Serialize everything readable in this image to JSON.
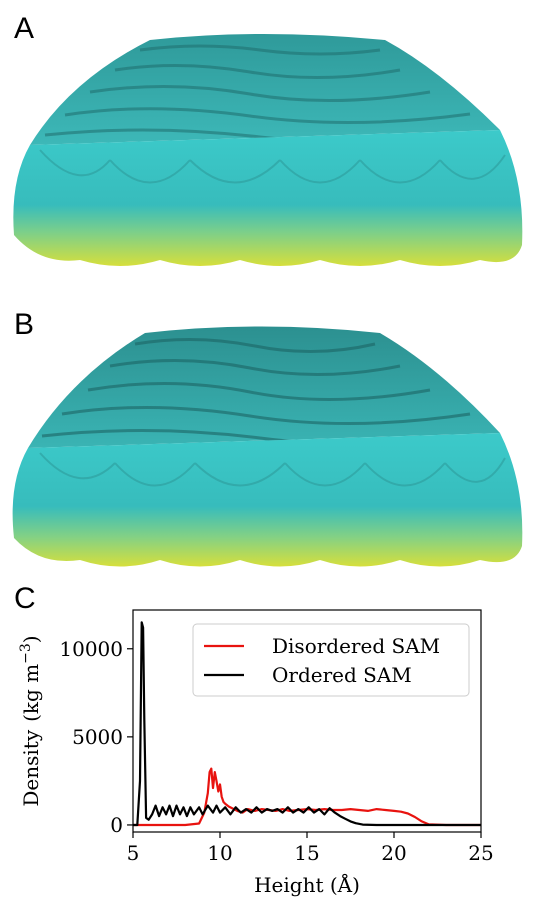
{
  "panels": {
    "a_label": "A",
    "b_label": "B",
    "c_label": "C"
  },
  "render": {
    "top_color": "#3fc8c8",
    "shadow_color": "#1f6f6f",
    "bottom_color": "#d8e040"
  },
  "chart_data": {
    "type": "line",
    "xlabel": "Height (Å)",
    "ylabel_main": "Density",
    "ylabel_unit_open": "(kg m",
    "ylabel_exp": "−3",
    "ylabel_unit_close": ")",
    "xlim": [
      5,
      25
    ],
    "ylim": [
      -400,
      12200
    ],
    "x_ticks": [
      5,
      10,
      15,
      20,
      25
    ],
    "y_ticks": [
      0,
      5000,
      10000
    ],
    "legend": {
      "placement": "top-right"
    },
    "series": [
      {
        "name": "Disordered SAM",
        "color": "#e8130f",
        "x": [
          5,
          6,
          7,
          8,
          8.8,
          9.1,
          9.3,
          9.4,
          9.5,
          9.6,
          9.7,
          9.8,
          9.9,
          10.0,
          10.1,
          10.2,
          10.3,
          10.5,
          10.8,
          11.0,
          11.3,
          11.6,
          12.0,
          12.4,
          12.8,
          13.2,
          13.6,
          14.0,
          14.5,
          15.0,
          15.5,
          16.0,
          16.5,
          17.0,
          17.5,
          18.0,
          18.5,
          19.0,
          19.5,
          20.0,
          20.4,
          20.8,
          21.2,
          21.6,
          22.0,
          23,
          24,
          25
        ],
        "y": [
          0,
          0,
          0,
          0,
          80,
          700,
          1800,
          3000,
          3200,
          2100,
          3000,
          2500,
          1900,
          2300,
          1600,
          1300,
          1200,
          1050,
          900,
          800,
          700,
          900,
          800,
          900,
          850,
          800,
          900,
          800,
          850,
          900,
          850,
          900,
          850,
          850,
          900,
          850,
          800,
          900,
          850,
          800,
          750,
          650,
          450,
          200,
          30,
          0,
          0,
          0
        ]
      },
      {
        "name": "Ordered SAM",
        "color": "#000000",
        "x": [
          5,
          5.25,
          5.4,
          5.5,
          5.58,
          5.65,
          5.75,
          5.9,
          6.1,
          6.3,
          6.5,
          6.7,
          6.9,
          7.1,
          7.3,
          7.5,
          7.7,
          7.9,
          8.1,
          8.3,
          8.5,
          8.8,
          9.0,
          9.3,
          9.6,
          9.8,
          10.0,
          10.3,
          10.6,
          10.9,
          11.2,
          11.5,
          11.8,
          12.1,
          12.4,
          12.7,
          13.0,
          13.3,
          13.6,
          13.9,
          14.2,
          14.5,
          14.8,
          15.1,
          15.4,
          15.7,
          16.0,
          16.3,
          16.6,
          16.9,
          17.2,
          17.5,
          17.8,
          18.2,
          19,
          20,
          22,
          25
        ],
        "y": [
          0,
          0,
          2500,
          11500,
          11200,
          6000,
          400,
          300,
          600,
          1100,
          500,
          1000,
          600,
          1100,
          500,
          1100,
          600,
          1000,
          500,
          1000,
          600,
          1000,
          600,
          1100,
          700,
          1100,
          700,
          1000,
          600,
          1000,
          700,
          900,
          700,
          1000,
          700,
          900,
          800,
          900,
          700,
          1000,
          700,
          900,
          700,
          1000,
          700,
          900,
          600,
          950,
          700,
          500,
          350,
          200,
          100,
          20,
          0,
          0,
          0,
          0
        ]
      }
    ]
  }
}
